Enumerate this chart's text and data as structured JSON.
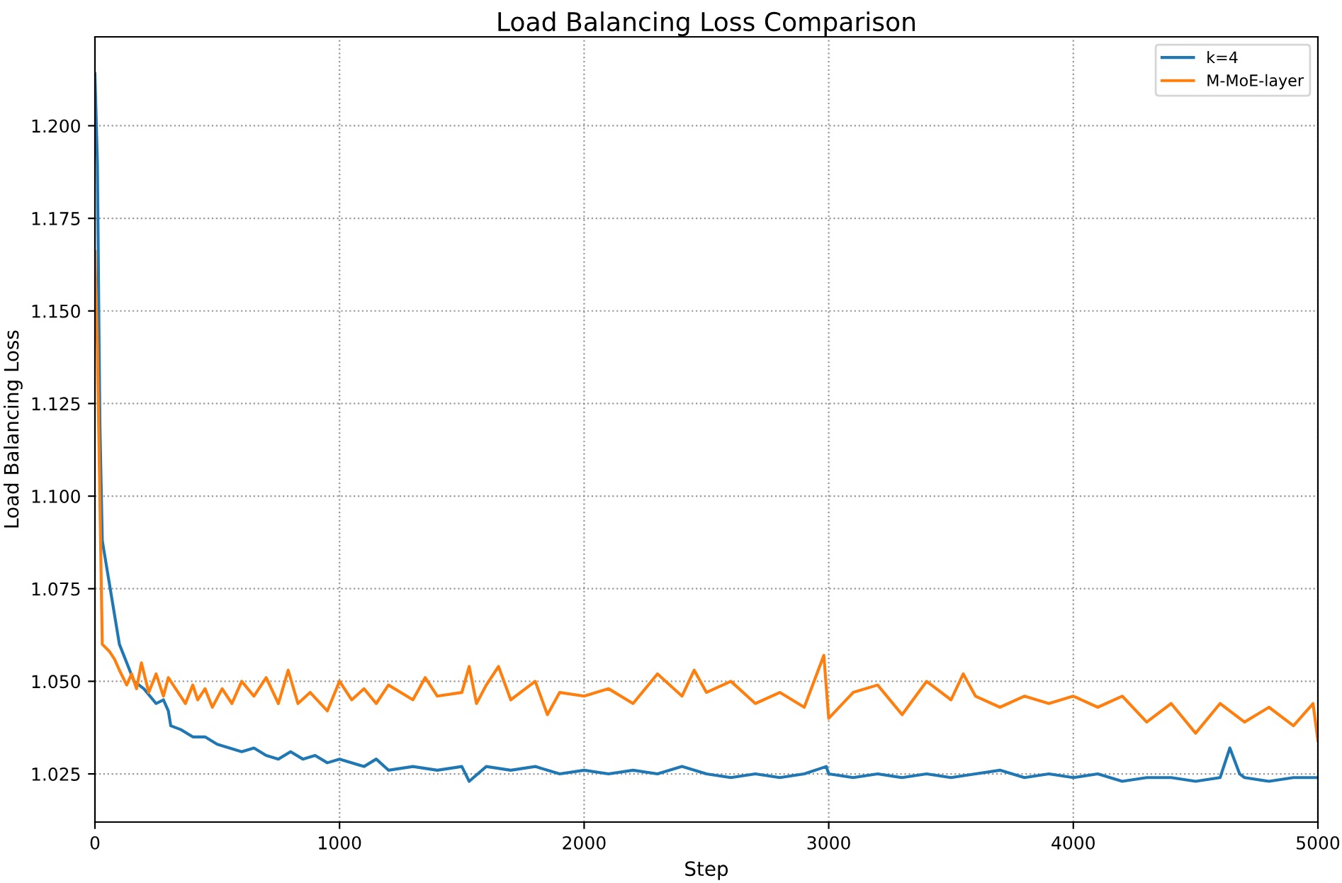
{
  "chart_data": {
    "type": "line",
    "title": "Load Balancing Loss Comparison",
    "xlabel": "Step",
    "ylabel": "Load Balancing Loss",
    "xlim": [
      0,
      5000
    ],
    "xticks": [
      0,
      1000,
      2000,
      3000,
      4000,
      5000
    ],
    "ylim": [
      1.012,
      1.224
    ],
    "yticks": [
      {
        "value": 1.025,
        "label": "1.025"
      },
      {
        "value": 1.05,
        "label": "1.050"
      },
      {
        "value": 1.075,
        "label": "1.075"
      },
      {
        "value": 1.1,
        "label": "1.100"
      },
      {
        "value": 1.125,
        "label": "1.125"
      },
      {
        "value": 1.15,
        "label": "1.150"
      },
      {
        "value": 1.175,
        "label": "1.175"
      },
      {
        "value": 1.2,
        "label": "1.200"
      }
    ],
    "grid": true,
    "legend": "top right",
    "line_style": "solid",
    "marker": "none",
    "series": [
      {
        "name": "k=4",
        "color": "#1f77b4",
        "x": [
          0,
          10,
          20,
          30,
          50,
          80,
          100,
          130,
          160,
          200,
          250,
          280,
          300,
          310,
          350,
          400,
          450,
          500,
          550,
          600,
          650,
          700,
          750,
          800,
          850,
          900,
          950,
          1000,
          1100,
          1150,
          1200,
          1300,
          1400,
          1500,
          1530,
          1600,
          1700,
          1800,
          1900,
          2000,
          2100,
          2200,
          2300,
          2400,
          2500,
          2600,
          2700,
          2800,
          2900,
          2990,
          3000,
          3100,
          3200,
          3300,
          3400,
          3500,
          3600,
          3700,
          3800,
          3900,
          4000,
          4100,
          4200,
          4300,
          4400,
          4500,
          4600,
          4640,
          4680,
          4700,
          4800,
          4900,
          5000
        ],
        "values": [
          1.214,
          1.19,
          1.12,
          1.088,
          1.08,
          1.068,
          1.06,
          1.055,
          1.05,
          1.048,
          1.044,
          1.045,
          1.042,
          1.038,
          1.037,
          1.035,
          1.035,
          1.033,
          1.032,
          1.031,
          1.032,
          1.03,
          1.029,
          1.031,
          1.029,
          1.03,
          1.028,
          1.029,
          1.027,
          1.029,
          1.026,
          1.027,
          1.026,
          1.027,
          1.023,
          1.027,
          1.026,
          1.027,
          1.025,
          1.026,
          1.025,
          1.026,
          1.025,
          1.027,
          1.025,
          1.024,
          1.025,
          1.024,
          1.025,
          1.027,
          1.025,
          1.024,
          1.025,
          1.024,
          1.025,
          1.024,
          1.025,
          1.026,
          1.024,
          1.025,
          1.024,
          1.025,
          1.023,
          1.024,
          1.024,
          1.023,
          1.024,
          1.032,
          1.025,
          1.024,
          1.023,
          1.024,
          1.024
        ]
      },
      {
        "name": "M-MoE-layer",
        "color": "#ff7f0e",
        "x": [
          0,
          10,
          20,
          30,
          60,
          80,
          100,
          130,
          150,
          170,
          190,
          220,
          250,
          280,
          300,
          330,
          370,
          400,
          420,
          450,
          480,
          520,
          560,
          600,
          650,
          700,
          750,
          790,
          830,
          880,
          950,
          1000,
          1050,
          1100,
          1150,
          1200,
          1300,
          1350,
          1400,
          1500,
          1530,
          1560,
          1600,
          1650,
          1700,
          1800,
          1850,
          1900,
          2000,
          2100,
          2200,
          2300,
          2400,
          2450,
          2500,
          2600,
          2700,
          2800,
          2900,
          2980,
          3000,
          3100,
          3200,
          3300,
          3400,
          3500,
          3550,
          3600,
          3700,
          3800,
          3900,
          4000,
          4100,
          4200,
          4300,
          4400,
          4500,
          4600,
          4700,
          4800,
          4900,
          4980,
          5000
        ],
        "values": [
          1.166,
          1.14,
          1.1,
          1.06,
          1.058,
          1.056,
          1.053,
          1.049,
          1.052,
          1.048,
          1.055,
          1.047,
          1.052,
          1.046,
          1.051,
          1.048,
          1.044,
          1.049,
          1.045,
          1.048,
          1.043,
          1.048,
          1.044,
          1.05,
          1.046,
          1.051,
          1.044,
          1.053,
          1.044,
          1.047,
          1.042,
          1.05,
          1.045,
          1.048,
          1.044,
          1.049,
          1.045,
          1.051,
          1.046,
          1.047,
          1.054,
          1.044,
          1.049,
          1.054,
          1.045,
          1.05,
          1.041,
          1.047,
          1.046,
          1.048,
          1.044,
          1.052,
          1.046,
          1.053,
          1.047,
          1.05,
          1.044,
          1.047,
          1.043,
          1.057,
          1.04,
          1.047,
          1.049,
          1.041,
          1.05,
          1.045,
          1.052,
          1.046,
          1.043,
          1.046,
          1.044,
          1.046,
          1.043,
          1.046,
          1.039,
          1.044,
          1.036,
          1.044,
          1.039,
          1.043,
          1.038,
          1.044,
          1.034
        ]
      }
    ]
  }
}
